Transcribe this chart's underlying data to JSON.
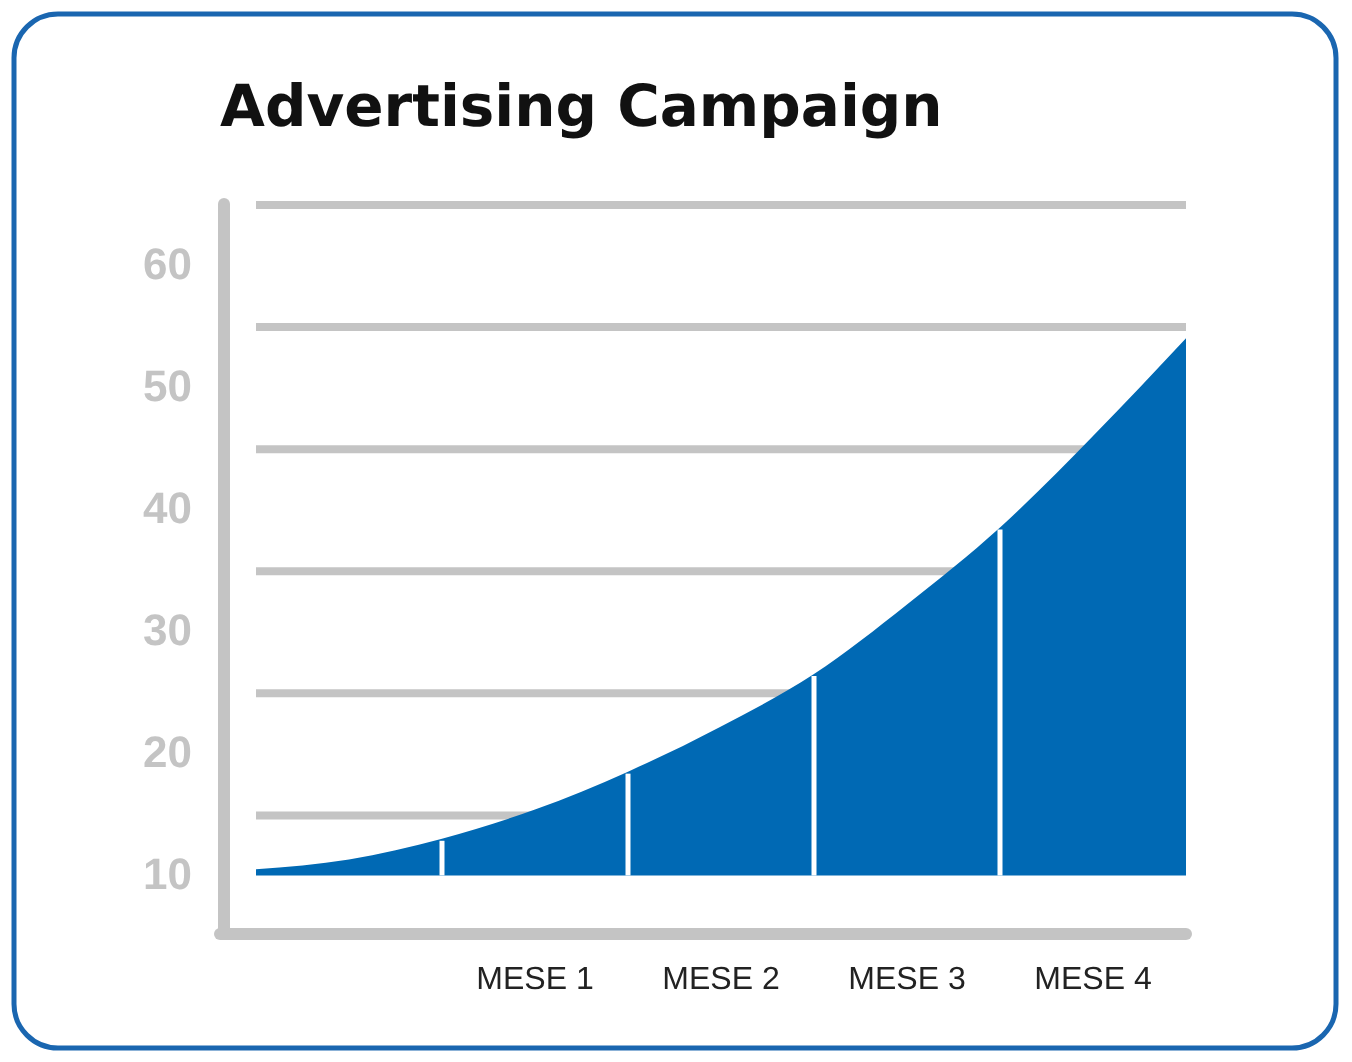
{
  "chart_data": {
    "type": "area",
    "title": "Advertising Campaign",
    "categories": [
      null,
      null,
      null,
      "MESE 1",
      null,
      "MESE 2",
      null,
      "MESE 3",
      null,
      "MESE 4",
      null
    ],
    "series": [
      {
        "color": "#0069b4",
        "values": [
          10.5,
          11.3,
          13,
          15.4,
          18.5,
          22.2,
          26.5,
          32.2,
          38.5,
          46,
          54
        ]
      }
    ],
    "ylim": [
      5.2,
      65
    ],
    "yticks": [
      10,
      20,
      30,
      40,
      50,
      60
    ],
    "grid": "y"
  }
}
